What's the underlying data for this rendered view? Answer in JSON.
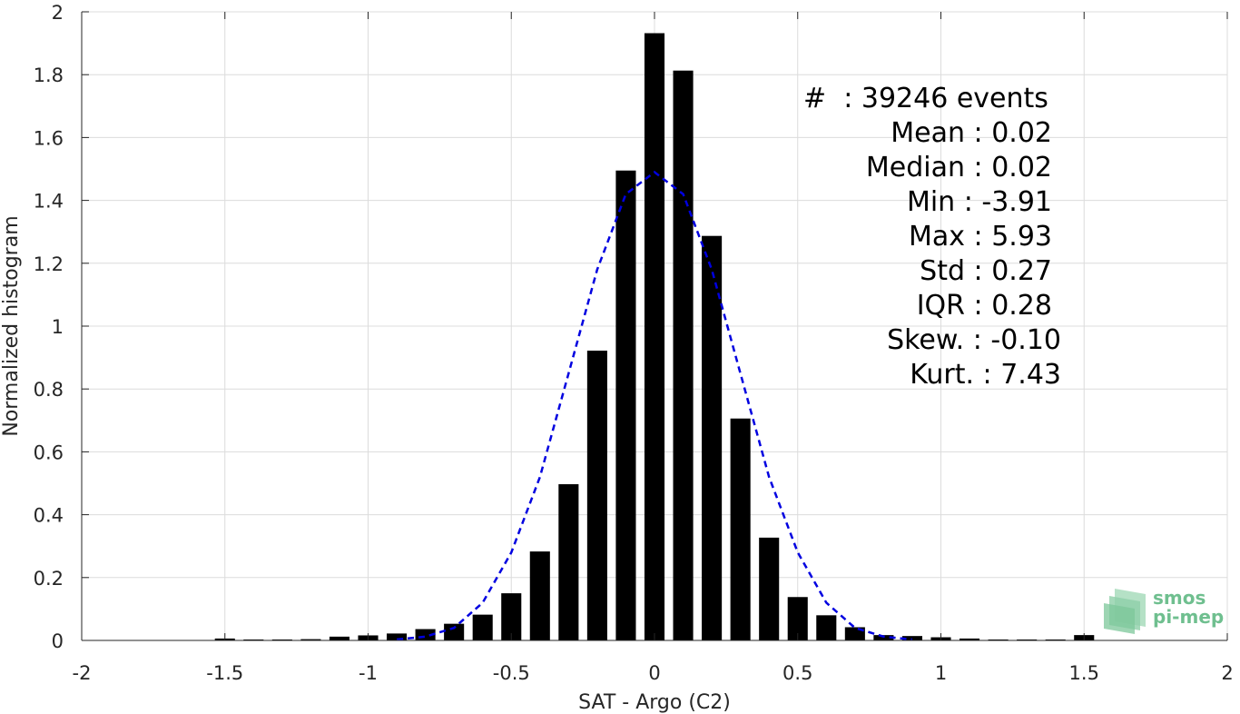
{
  "chart_data": {
    "type": "bar",
    "xlabel": "SAT - Argo (C2)",
    "ylabel": "Normalized histogram",
    "xlim": [
      -2,
      2
    ],
    "ylim": [
      0,
      2
    ],
    "xticks": [
      -2,
      -1.5,
      -1,
      -0.5,
      0,
      0.5,
      1,
      1.5,
      2
    ],
    "xtick_labels": [
      "-2",
      "-1.5",
      "-1",
      "-0.5",
      "0",
      "0.5",
      "1",
      "1.5",
      "2"
    ],
    "yticks": [
      0,
      0.2,
      0.4,
      0.6,
      0.8,
      1,
      1.2,
      1.4,
      1.6,
      1.8,
      2
    ],
    "ytick_labels": [
      "0",
      "0.2",
      "0.4",
      "0.6",
      "0.8",
      "1",
      "1.2",
      "1.4",
      "1.6",
      "1.8",
      "2"
    ],
    "grid": true,
    "bar_color": "#000000",
    "bars": {
      "x": [
        -1.5,
        -1.4,
        -1.3,
        -1.2,
        -1.1,
        -1.0,
        -0.9,
        -0.8,
        -0.7,
        -0.6,
        -0.5,
        -0.4,
        -0.3,
        -0.2,
        -0.1,
        0.0,
        0.1,
        0.2,
        0.3,
        0.4,
        0.5,
        0.6,
        0.7,
        0.8,
        0.9,
        1.0,
        1.1,
        1.2,
        1.3,
        1.4,
        1.5
      ],
      "values": [
        0.006,
        0.003,
        0.003,
        0.004,
        0.012,
        0.016,
        0.022,
        0.036,
        0.053,
        0.082,
        0.15,
        0.283,
        0.497,
        0.922,
        1.495,
        1.932,
        1.813,
        1.287,
        0.706,
        0.327,
        0.138,
        0.08,
        0.042,
        0.017,
        0.014,
        0.01,
        0.006,
        0.003,
        0.003,
        0.003,
        0.017
      ]
    },
    "fit_curve": {
      "style": "dashed",
      "color": "#0000e0",
      "x": [
        -0.9,
        -0.8,
        -0.7,
        -0.6,
        -0.5,
        -0.4,
        -0.3,
        -0.2,
        -0.1,
        0.0,
        0.1,
        0.2,
        0.3,
        0.4,
        0.5,
        0.6,
        0.7,
        0.8,
        0.9
      ],
      "values": [
        0.003,
        0.012,
        0.04,
        0.12,
        0.28,
        0.52,
        0.85,
        1.18,
        1.42,
        1.49,
        1.42,
        1.18,
        0.85,
        0.52,
        0.28,
        0.12,
        0.04,
        0.012,
        0.003
      ]
    },
    "stats_box": {
      "placement": "top-right",
      "lines": [
        "#  : 39246 events",
        "Mean : 0.02",
        "Median : 0.02",
        "Min : -3.91",
        "Max : 5.93",
        "Std : 0.27",
        "IQR : 0.28",
        "Skew. : -0.10",
        "Kurt. : 7.43"
      ]
    },
    "logo": {
      "line1": "smos",
      "line2": "pi-mep",
      "color": "#6fbf8f"
    }
  }
}
